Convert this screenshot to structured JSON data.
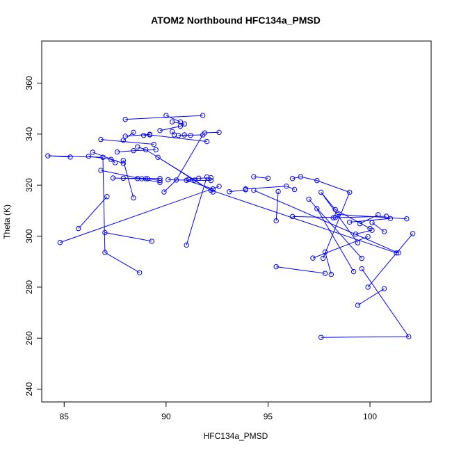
{
  "chart_data": {
    "type": "scatter",
    "title": "ATOM2 Northbound HFC134a_PMSD",
    "xlabel": "HFC134a_PMSD",
    "ylabel": "Theta (K)",
    "xlim": [
      83.9,
      103.0
    ],
    "ylim": [
      235.0,
      376.5
    ],
    "xticks": [
      85,
      90,
      95,
      100
    ],
    "yticks": [
      240,
      260,
      280,
      300,
      320,
      340,
      360
    ],
    "xtick_labels": [
      "85",
      "90",
      "95",
      "100"
    ],
    "ytick_labels": [
      "240",
      "260",
      "280",
      "300",
      "320",
      "340",
      "360"
    ],
    "grid": false,
    "legend": "none",
    "style": {
      "color": "#0000ff",
      "markers": "open-circle",
      "connected": true
    },
    "points": [
      [
        91.8,
        347.3
      ],
      [
        88.0,
        345.8
      ],
      [
        90.0,
        347.3
      ],
      [
        90.7,
        344.8
      ],
      [
        90.3,
        344.8
      ],
      [
        90.9,
        344.0
      ],
      [
        90.7,
        343.1
      ],
      [
        89.7,
        341.4
      ],
      [
        90.4,
        339.7
      ],
      [
        90.3,
        341.0
      ],
      [
        91.2,
        339.5
      ],
      [
        90.9,
        339.7
      ],
      [
        90.6,
        339.5
      ],
      [
        91.8,
        339.7
      ],
      [
        88.0,
        339.2
      ],
      [
        89.2,
        339.9
      ],
      [
        91.9,
        340.5
      ],
      [
        92.6,
        340.7
      ],
      [
        92.0,
        337.1
      ],
      [
        89.2,
        339.7
      ],
      [
        88.9,
        339.5
      ],
      [
        88.4,
        340.7
      ],
      [
        87.9,
        337.6
      ],
      [
        86.8,
        337.9
      ],
      [
        89.4,
        336.0
      ],
      [
        88.6,
        335.0
      ],
      [
        89.0,
        333.9
      ],
      [
        89.5,
        333.9
      ],
      [
        88.4,
        333.5
      ],
      [
        87.6,
        333.0
      ],
      [
        86.4,
        332.9
      ],
      [
        87.9,
        328.5
      ],
      [
        85.3,
        331.0
      ],
      [
        84.2,
        331.5
      ],
      [
        86.9,
        330.9
      ],
      [
        86.2,
        331.3
      ],
      [
        87.3,
        330.1
      ],
      [
        87.5,
        328.8
      ],
      [
        88.8,
        322.5
      ],
      [
        87.4,
        322.8
      ],
      [
        91.0,
        321.9
      ],
      [
        92.3,
        318.5
      ],
      [
        95.0,
        322.7
      ],
      [
        94.3,
        323.3
      ],
      [
        96.2,
        322.6
      ],
      [
        96.6,
        323.3
      ],
      [
        97.4,
        321.8
      ],
      [
        99.0,
        317.2
      ],
      [
        97.7,
        291.3
      ],
      [
        99.4,
        297.4
      ],
      [
        97.6,
        317.2
      ],
      [
        100.8,
        307.8
      ],
      [
        98.2,
        307.2
      ],
      [
        100.0,
        303.0
      ],
      [
        98.3,
        310.4
      ],
      [
        101.8,
        306.8
      ],
      [
        98.4,
        308.5
      ],
      [
        102.1,
        301.0
      ],
      [
        99.9,
        280.0
      ],
      [
        101.3,
        293.4
      ],
      [
        92.2,
        318.0
      ],
      [
        95.4,
        306.0
      ],
      [
        95.5,
        317.5
      ],
      [
        97.4,
        310.8
      ],
      [
        99.2,
        286.1
      ],
      [
        100.4,
        308.4
      ],
      [
        99.5,
        304.9
      ],
      [
        100.1,
        302.3
      ],
      [
        99.3,
        300.8
      ],
      [
        101.4,
        293.4
      ],
      [
        94.3,
        318.0
      ],
      [
        93.9,
        318.5
      ],
      [
        95.9,
        319.6
      ],
      [
        96.3,
        318.3
      ],
      [
        97.0,
        314.5
      ],
      [
        99.6,
        291.3
      ],
      [
        97.8,
        285.4
      ],
      [
        95.4,
        288.0
      ],
      [
        97.8,
        293.8
      ],
      [
        98.1,
        285.0
      ],
      [
        99.9,
        299.8
      ],
      [
        97.2,
        291.4
      ],
      [
        100.1,
        305.3
      ],
      [
        100.7,
        301.8
      ],
      [
        100.7,
        279.4
      ],
      [
        99.4,
        272.9
      ],
      [
        97.6,
        260.3
      ],
      [
        101.9,
        260.6
      ],
      [
        99.6,
        287.2
      ],
      [
        99.0,
        305.5
      ],
      [
        101.0,
        306.9
      ],
      [
        96.2,
        307.7
      ],
      [
        98.3,
        307.3
      ],
      [
        93.1,
        317.4
      ],
      [
        93.9,
        318.2
      ],
      [
        92.2,
        321.8
      ],
      [
        90.1,
        322.1
      ],
      [
        88.6,
        322.6
      ],
      [
        89.0,
        322.5
      ],
      [
        91.4,
        322.0
      ],
      [
        92.3,
        317.3
      ],
      [
        89.6,
        330.9
      ],
      [
        89.3,
        298.0
      ],
      [
        87.0,
        301.4
      ],
      [
        87.0,
        293.6
      ],
      [
        88.7,
        285.7
      ],
      [
        88.4,
        315.0
      ],
      [
        87.9,
        329.7
      ],
      [
        91.0,
        296.5
      ],
      [
        92.0,
        323.2
      ],
      [
        89.9,
        317.3
      ],
      [
        90.5,
        322.0
      ],
      [
        89.7,
        321.8
      ],
      [
        89.1,
        322.5
      ],
      [
        89.7,
        321.0
      ],
      [
        86.8,
        325.8
      ],
      [
        85.7,
        303.0
      ],
      [
        87.1,
        315.5
      ],
      [
        87.9,
        322.7
      ],
      [
        89.7,
        322.6
      ],
      [
        92.6,
        319.5
      ],
      [
        84.8,
        297.5
      ],
      [
        91.1,
        322.2
      ],
      [
        91.6,
        322.7
      ],
      [
        92.2,
        322.9
      ]
    ],
    "segments": [
      [
        0,
        1
      ],
      [
        2,
        3
      ],
      [
        4,
        5
      ],
      [
        5,
        6
      ],
      [
        6,
        7
      ],
      [
        8,
        9
      ],
      [
        10,
        11
      ],
      [
        12,
        13
      ],
      [
        14,
        15
      ],
      [
        16,
        17
      ],
      [
        18,
        19
      ],
      [
        19,
        20
      ],
      [
        21,
        22
      ],
      [
        23,
        24
      ],
      [
        25,
        26
      ],
      [
        27,
        28
      ],
      [
        28,
        29
      ],
      [
        30,
        31
      ],
      [
        32,
        33
      ],
      [
        33,
        34
      ],
      [
        35,
        36
      ],
      [
        36,
        37
      ],
      [
        38,
        39
      ],
      [
        40,
        41
      ],
      [
        42,
        43
      ],
      [
        44,
        45
      ],
      [
        45,
        46
      ],
      [
        46,
        47
      ],
      [
        47,
        48
      ],
      [
        49,
        50
      ],
      [
        51,
        52
      ],
      [
        53,
        54
      ],
      [
        55,
        56
      ],
      [
        57,
        58
      ],
      [
        59,
        60
      ],
      [
        61,
        62
      ],
      [
        63,
        64
      ],
      [
        65,
        66
      ],
      [
        67,
        68
      ],
      [
        69,
        70
      ],
      [
        71,
        72
      ],
      [
        72,
        73
      ],
      [
        74,
        75
      ],
      [
        76,
        77
      ],
      [
        78,
        79
      ],
      [
        80,
        81
      ],
      [
        82,
        83
      ],
      [
        84,
        85
      ],
      [
        86,
        87
      ],
      [
        87,
        88
      ],
      [
        89,
        90
      ],
      [
        91,
        92
      ],
      [
        93,
        94
      ],
      [
        95,
        96
      ],
      [
        97,
        98
      ],
      [
        99,
        100
      ],
      [
        100,
        101
      ],
      [
        102,
        103
      ],
      [
        104,
        105
      ],
      [
        106,
        107
      ],
      [
        108,
        109
      ],
      [
        110,
        111
      ],
      [
        112,
        113
      ],
      [
        114,
        115
      ],
      [
        116,
        117
      ],
      [
        118,
        119
      ],
      [
        120,
        121
      ],
      [
        122,
        123
      ],
      [
        123,
        124
      ],
      [
        125,
        126
      ],
      [
        34,
        104
      ],
      [
        54,
        50
      ],
      [
        13,
        111
      ],
      [
        99,
        26
      ]
    ]
  }
}
